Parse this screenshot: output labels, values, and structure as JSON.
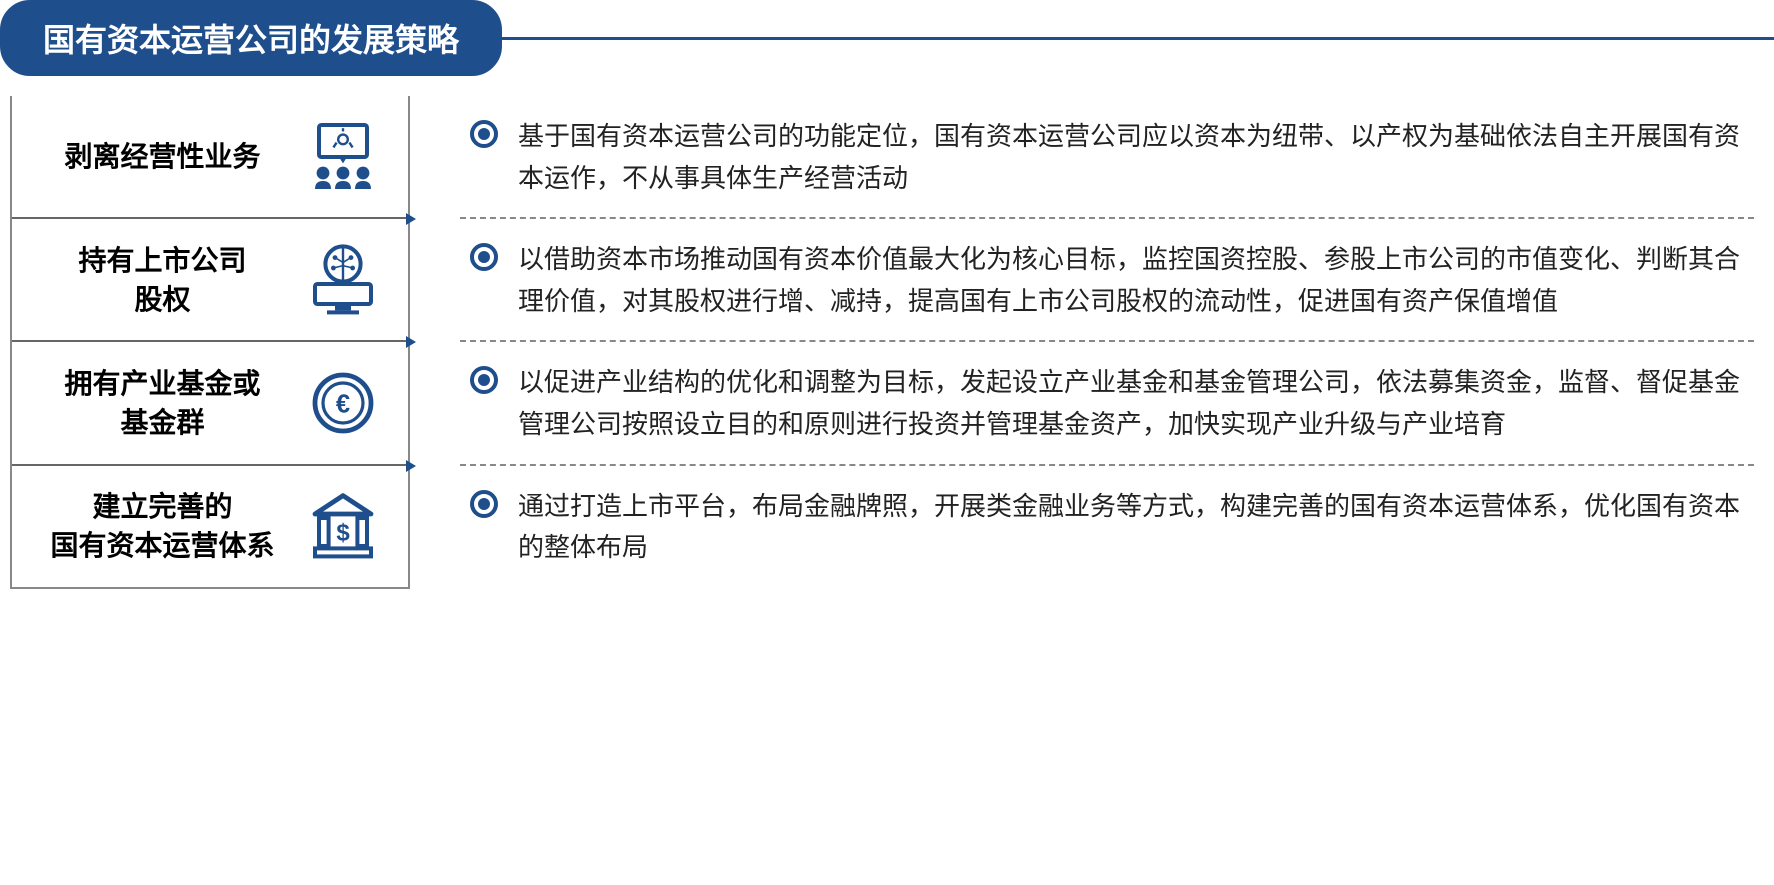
{
  "header": {
    "title": "国有资本运营公司的发展策略"
  },
  "colors": {
    "primary": "#1e4e8c",
    "text": "#222222",
    "border": "#888888",
    "white": "#ffffff"
  },
  "typography": {
    "header_fontsize": 32,
    "left_title_fontsize": 28,
    "desc_fontsize": 26
  },
  "items": [
    {
      "title": "剥离经营性业务",
      "icon": "presentation-icon",
      "description": "基于国有资本运营公司的功能定位，国有资本运营公司应以资本为纽带、以产权为基础依法自主开展国有资本运作，不从事具体生产经营活动"
    },
    {
      "title": "持有上市公司\n股权",
      "icon": "brain-computer-icon",
      "description": "以借助资本市场推动国有资本价值最大化为核心目标，监控国资控股、参股上市公司的市值变化、判断其合理价值，对其股权进行增、减持，提高国有上市公司股权的流动性，促进国有资产保值增值"
    },
    {
      "title": "拥有产业基金或\n基金群",
      "icon": "euro-coin-icon",
      "description": "以促进产业结构的优化和调整为目标，发起设立产业基金和基金管理公司，依法募集资金，监督、督促基金管理公司按照设立目的和原则进行投资并管理基金资产，加快实现产业升级与产业培育"
    },
    {
      "title": "建立完善的\n国有资本运营体系",
      "icon": "bank-dollar-icon",
      "description": "通过打造上市平台，布局金融牌照，开展类金融业务等方式，构建完善的国有资本运营体系，优化国有资本的整体布局"
    }
  ]
}
